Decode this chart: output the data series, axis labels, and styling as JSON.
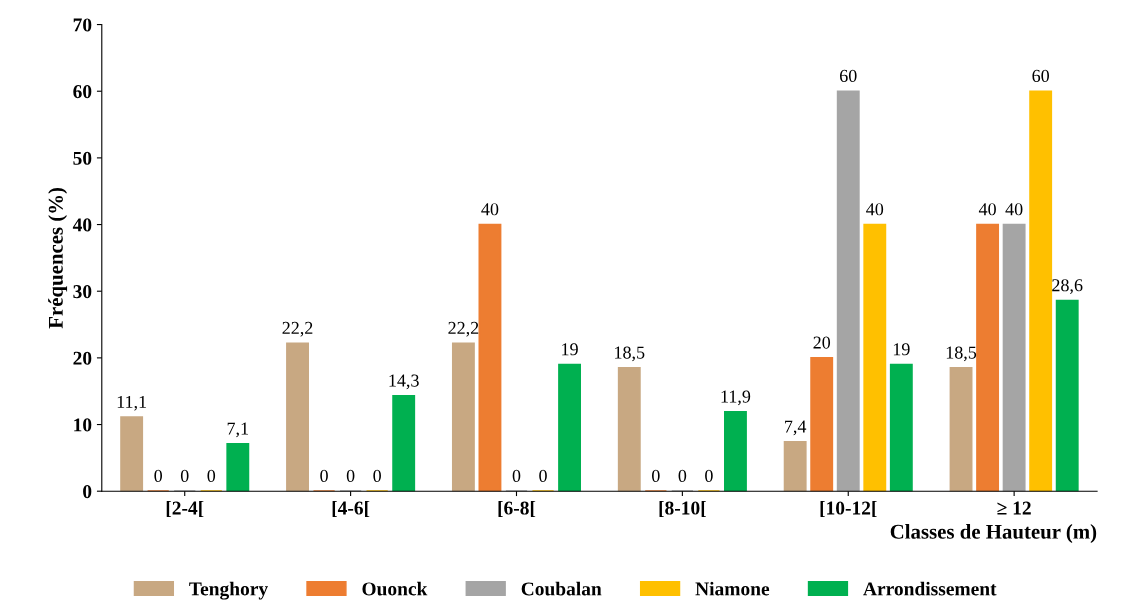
{
  "chart_data": {
    "type": "bar",
    "xlabel": "Classes de Hauteur (m)",
    "ylabel": "Fréquences (%)",
    "categories": [
      "[2-4[",
      "[4-6[",
      "[6-8[",
      "[8-10[",
      "[10-12[",
      "≥ 12"
    ],
    "series": [
      {
        "name": "Tenghory",
        "color": "#c8a882",
        "values": [
          11.1,
          22.2,
          22.2,
          18.5,
          7.4,
          18.5
        ],
        "value_labels": [
          "11,1",
          "22,2",
          "22,2",
          "18,5",
          "7,4",
          "18,5"
        ]
      },
      {
        "name": "Ouonck",
        "color": "#ed7d31",
        "values": [
          0,
          0,
          40,
          0,
          20,
          40
        ],
        "value_labels": [
          "0",
          "0",
          "40",
          "0",
          "20",
          "40"
        ]
      },
      {
        "name": "Coubalan",
        "color": "#a5a5a5",
        "values": [
          0,
          0,
          0,
          0,
          60,
          40
        ],
        "value_labels": [
          "0",
          "0",
          "0",
          "0",
          "60",
          "40"
        ]
      },
      {
        "name": "Niamone",
        "color": "#ffc000",
        "values": [
          0,
          0,
          0,
          0,
          40,
          60
        ],
        "value_labels": [
          "0",
          "0",
          "0",
          "0",
          "40",
          "60"
        ]
      },
      {
        "name": "Arrondissement",
        "color": "#00b050",
        "values": [
          7.1,
          14.3,
          19,
          11.9,
          19,
          28.6
        ],
        "value_labels": [
          "7,1",
          "14,3",
          "19",
          "11,9",
          "19",
          "28,6"
        ]
      }
    ],
    "ylim": [
      0,
      70
    ],
    "yticks": [
      0,
      10,
      20,
      30,
      40,
      50,
      60,
      70
    ],
    "grid": false,
    "legend": "bottom"
  }
}
